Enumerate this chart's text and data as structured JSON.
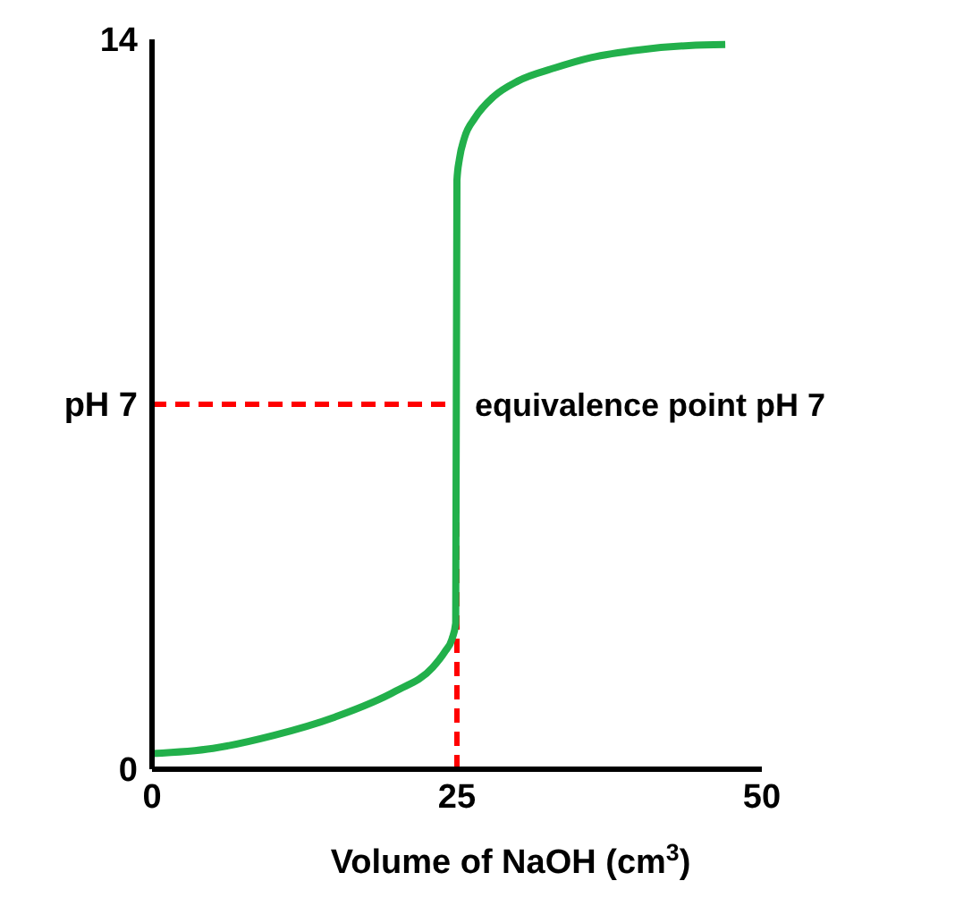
{
  "chart_data": {
    "type": "line",
    "xlabel": "Volume of NaOH (cm$^{3}$)",
    "x": [
      0,
      5,
      10,
      15,
      20,
      23,
      24,
      24.6,
      24.9,
      25,
      25.2,
      25.6,
      26.5,
      28,
      30,
      33,
      36,
      40,
      44,
      47
    ],
    "series": [
      {
        "color": "#22b04b",
        "values": [
          0.3,
          0.4,
          0.65,
          1.0,
          1.5,
          1.95,
          2.25,
          2.5,
          2.8,
          11.3,
          11.7,
          12.1,
          12.5,
          12.9,
          13.2,
          13.45,
          13.65,
          13.8,
          13.88,
          13.9
        ]
      }
    ],
    "xlim": [
      0,
      50
    ],
    "xticks": [
      0,
      25,
      50
    ],
    "ylim": [
      0,
      14
    ],
    "yticks": [
      0,
      {
        "value": 7,
        "label": "pH  7"
      },
      14
    ],
    "marker": "none",
    "line_style": "solid",
    "ref_lines": [
      {
        "axis": "y",
        "value": 7,
        "color": "#ff0000",
        "line_style": "dashed"
      },
      {
        "axis": "x",
        "value": 25,
        "color": "#ff0000",
        "line_style": "dashed"
      }
    ],
    "annotations": [
      {
        "text": "equivalence point pH 7",
        "x": 25,
        "y": 7
      }
    ]
  }
}
